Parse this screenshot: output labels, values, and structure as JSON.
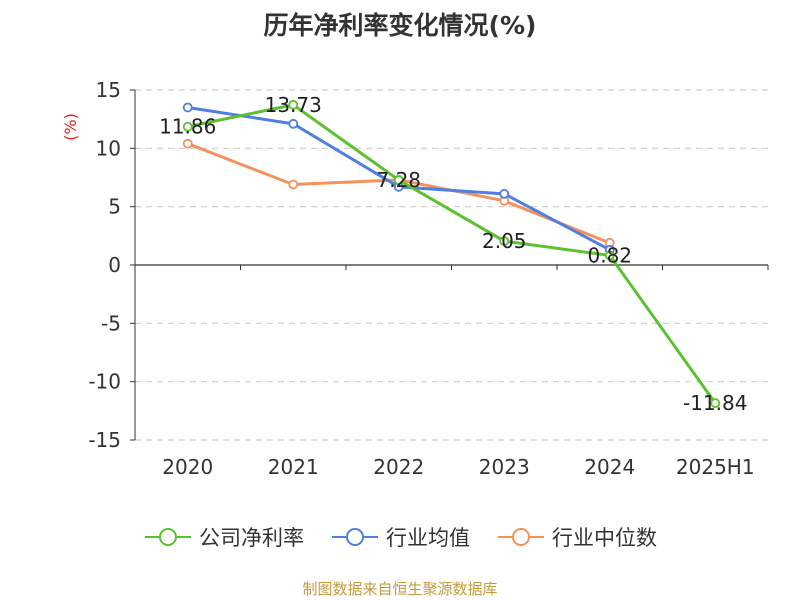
{
  "chart_data": {
    "type": "line",
    "title": "历年净利率变化情况(%)",
    "ylabel": "(%)",
    "xlabel": "",
    "categories": [
      "2020",
      "2021",
      "2022",
      "2023",
      "2024",
      "2025H1"
    ],
    "ylim": [
      -15,
      15
    ],
    "yticks": [
      "15",
      "10",
      "5",
      "0",
      "-5",
      "-10",
      "-15"
    ],
    "grid": true,
    "legend_position": "bottom",
    "series": [
      {
        "name": "公司净利率",
        "color": "#5cc12d",
        "values": [
          11.86,
          13.73,
          7.28,
          2.05,
          0.82,
          -11.84
        ],
        "labels": [
          "11.86",
          "13.73",
          "7.28",
          "2.05",
          "0.82",
          "-11.84"
        ]
      },
      {
        "name": "行业均值",
        "color": "#4f7fe0",
        "values": [
          13.5,
          12.1,
          6.7,
          6.1,
          1.3,
          null
        ]
      },
      {
        "name": "行业中位数",
        "color": "#f5915a",
        "values": [
          10.4,
          6.9,
          7.3,
          5.5,
          1.9,
          null
        ]
      }
    ]
  },
  "footer": {
    "source": "制图数据来自恒生聚源数据库"
  }
}
